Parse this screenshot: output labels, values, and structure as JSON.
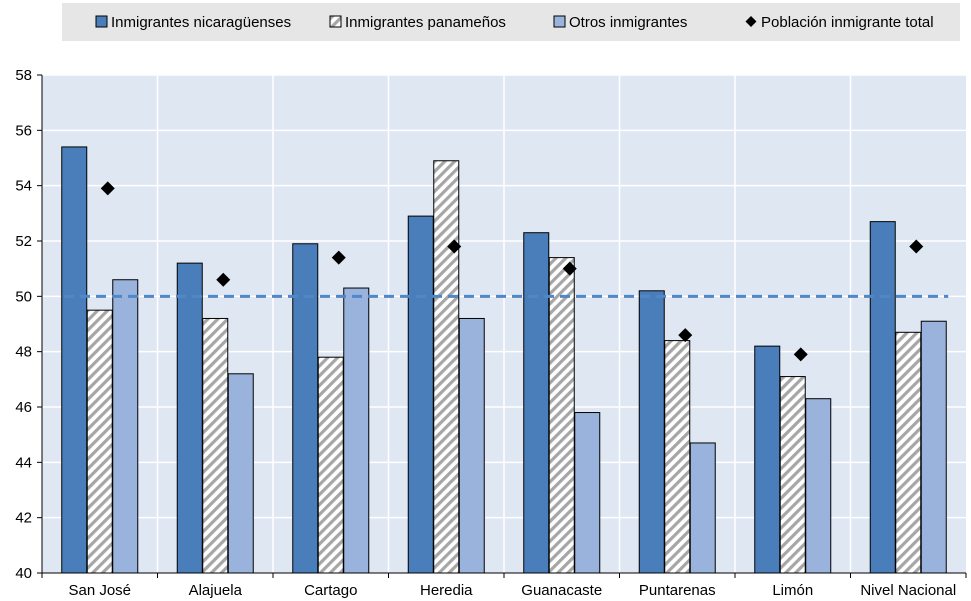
{
  "chart_data": {
    "type": "bar",
    "title": "",
    "xlabel": "",
    "ylabel": "",
    "ylim": [
      40,
      58
    ],
    "yticks": [
      40,
      42,
      44,
      46,
      48,
      50,
      52,
      54,
      56,
      58
    ],
    "grid": true,
    "legend_position": "top",
    "reference_line": {
      "value": 50,
      "style": "dashed",
      "color": "#4f87c8"
    },
    "categories": [
      "San José",
      "Alajuela",
      "Cartago",
      "Heredia",
      "Guanacaste",
      "Puntarenas",
      "Limón",
      "Nivel Nacional"
    ],
    "series": [
      {
        "name": "Inmigrantes nicaragüenses",
        "kind": "bar",
        "fill": "solid",
        "color": "#4a7ebb",
        "values": [
          55.4,
          51.2,
          51.9,
          52.9,
          52.3,
          50.2,
          48.2,
          52.7
        ]
      },
      {
        "name": "Inmigrantes panameños",
        "kind": "bar",
        "fill": "hatched",
        "color": "#a6a6a6",
        "values": [
          49.5,
          49.2,
          47.8,
          54.9,
          51.4,
          48.4,
          47.1,
          48.7
        ]
      },
      {
        "name": "Otros inmigrantes",
        "kind": "bar",
        "fill": "solid",
        "color": "#99b3dd",
        "values": [
          50.6,
          47.2,
          50.3,
          49.2,
          45.8,
          44.7,
          46.3,
          49.1
        ]
      },
      {
        "name": "Población inmigrante total",
        "kind": "marker",
        "marker": "diamond",
        "color": "#000000",
        "values": [
          53.9,
          50.6,
          51.4,
          51.8,
          51.0,
          48.6,
          47.9,
          51.8
        ]
      }
    ]
  }
}
